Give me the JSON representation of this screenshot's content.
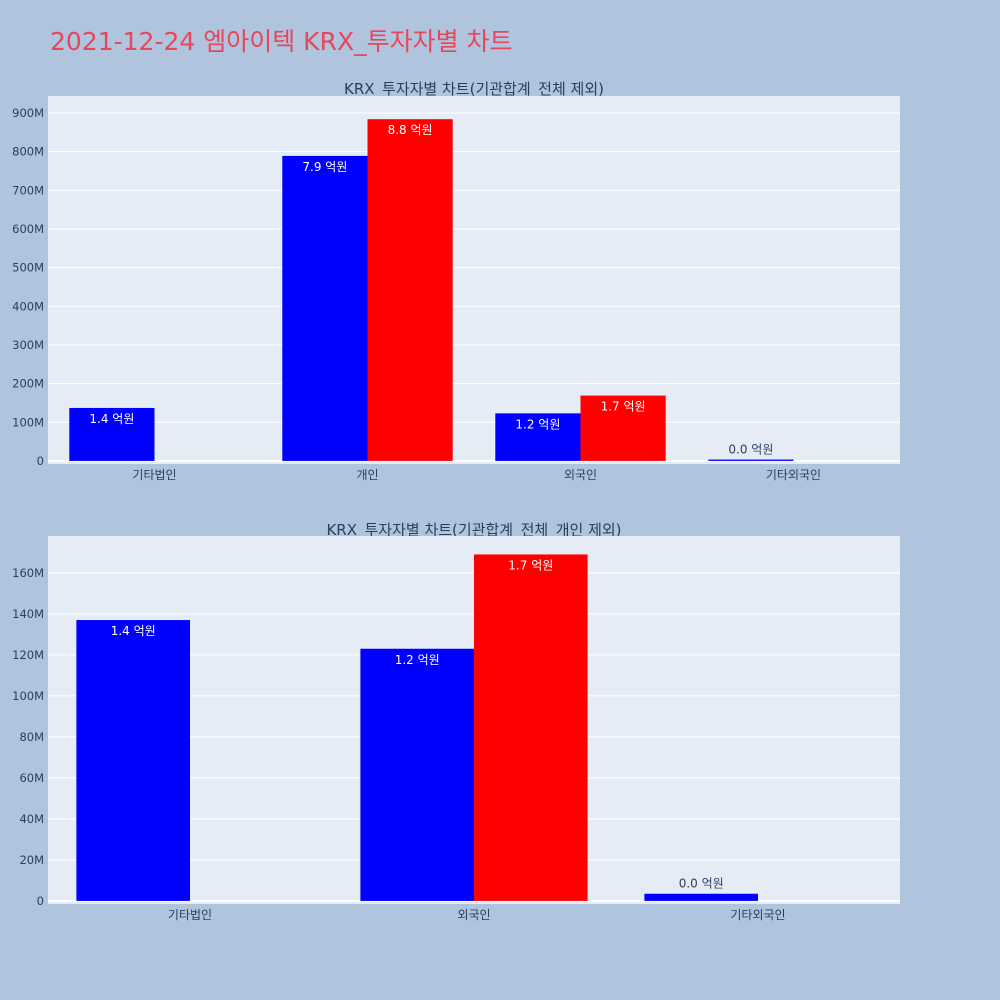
{
  "page": {
    "title": "2021-12-24 엠아이텍 KRX_투자자별 차트"
  },
  "colors": {
    "buy": "#0000ff",
    "sell": "#ff0000",
    "plot_bg": "#e5ecf6",
    "page_bg": "#b0c4de",
    "title": "#e8465a"
  },
  "chart_data": [
    {
      "type": "bar",
      "title": "KRX_투자자별 차트(기관합계_전체 제외)",
      "categories": [
        "기타법인",
        "개인",
        "외국인",
        "기타외국인"
      ],
      "series": [
        {
          "color": "#0000ff",
          "values": [
            137000000,
            789000000,
            123000000,
            3500000
          ],
          "labels": [
            "1.4 억원",
            "7.9 억원",
            "1.2 억원",
            "0.0 억원"
          ]
        },
        {
          "color": "#ff0000",
          "values": [
            0,
            884000000,
            169000000,
            0
          ],
          "labels": [
            "",
            "8.8 억원",
            "1.7 억원",
            ""
          ]
        }
      ],
      "ylim": [
        -8000000,
        944000000
      ],
      "yticks": [
        0,
        100000000,
        200000000,
        300000000,
        400000000,
        500000000,
        600000000,
        700000000,
        800000000,
        900000000
      ],
      "ytick_labels": [
        "0",
        "100M",
        "200M",
        "300M",
        "400M",
        "500M",
        "600M",
        "700M",
        "800M",
        "900M"
      ],
      "grid": true,
      "legend": "none"
    },
    {
      "type": "bar",
      "title": "KRX_투자자별 차트(기관합계_전체_개인 제외)",
      "categories": [
        "기타법인",
        "외국인",
        "기타외국인"
      ],
      "series": [
        {
          "color": "#0000ff",
          "values": [
            137000000,
            123000000,
            3500000
          ],
          "labels": [
            "1.4 억원",
            "1.2 억원",
            "0.0 억원"
          ]
        },
        {
          "color": "#ff0000",
          "values": [
            0,
            169000000,
            0
          ],
          "labels": [
            "",
            "1.7 억원",
            ""
          ]
        }
      ],
      "ylim": [
        -1500000,
        178000000
      ],
      "yticks": [
        0,
        20000000,
        40000000,
        60000000,
        80000000,
        100000000,
        120000000,
        140000000,
        160000000
      ],
      "ytick_labels": [
        "0",
        "20M",
        "40M",
        "60M",
        "80M",
        "100M",
        "120M",
        "140M",
        "160M"
      ],
      "grid": true,
      "legend": "none"
    }
  ]
}
